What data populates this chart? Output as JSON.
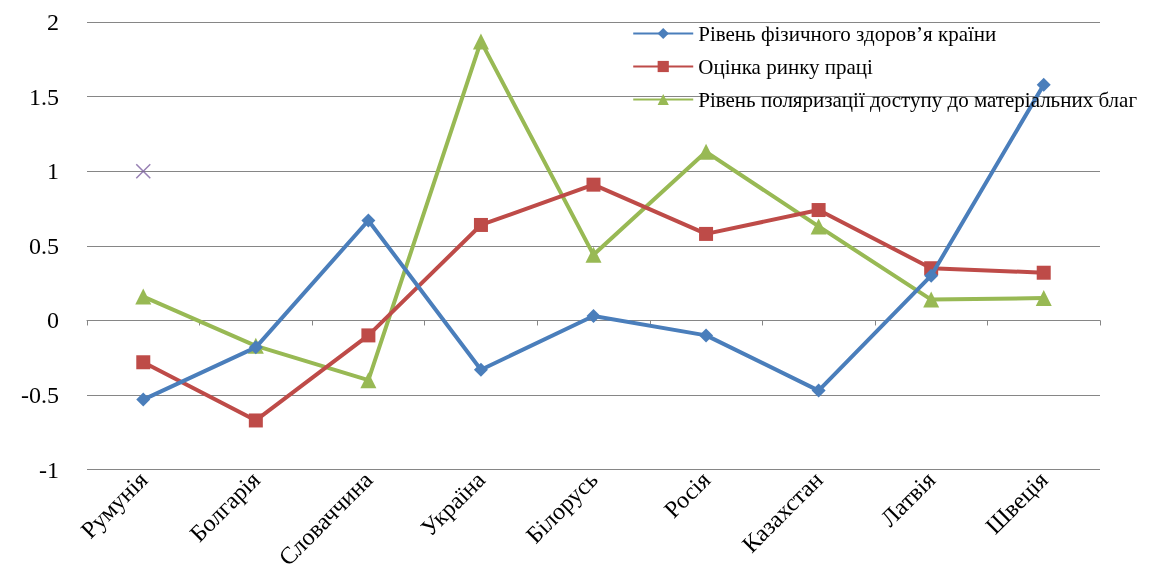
{
  "chart_data": {
    "type": "line",
    "categories": [
      "Румунія",
      "Болгарія",
      "Словаччина",
      "Україна",
      "Білорусь",
      "Росія",
      "Казахстан",
      "Латвія",
      "Швеція"
    ],
    "series": [
      {
        "name": "Рівень фізичного здоров’я країни",
        "color": "#4a7ebb",
        "marker": "diamond",
        "values": [
          -0.53,
          -0.18,
          0.67,
          -0.33,
          0.03,
          -0.1,
          -0.47,
          0.3,
          1.58
        ]
      },
      {
        "name": "Оцінка ринку праці",
        "color": "#be4b48",
        "marker": "square",
        "values": [
          -0.28,
          -0.67,
          -0.1,
          0.64,
          0.91,
          0.58,
          0.74,
          0.35,
          0.32
        ]
      },
      {
        "name": "Рівень поляризації доступу до матеріальних благ",
        "color": "#98b954",
        "marker": "triangle",
        "values": [
          0.16,
          -0.17,
          -0.4,
          1.87,
          0.44,
          1.13,
          0.63,
          0.14,
          0.15
        ]
      },
      {
        "type": "scatter",
        "color": "#7d60a0",
        "marker": "cross",
        "values": [
          1,
          null,
          null,
          null,
          null,
          null,
          null,
          null,
          null
        ]
      }
    ],
    "ylim": [
      -1,
      2
    ],
    "yticks": [
      -1,
      -0.5,
      0,
      0.5,
      1,
      1.5,
      2
    ],
    "grid": "y",
    "legend": "top right"
  }
}
